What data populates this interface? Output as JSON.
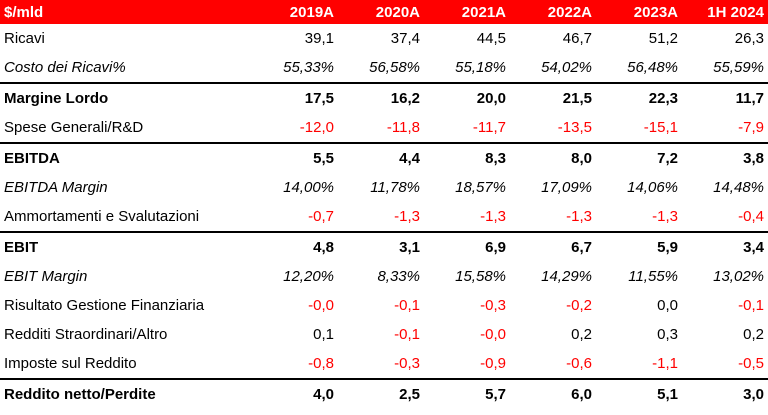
{
  "header": {
    "label": "$/mld",
    "columns": [
      "2019A",
      "2020A",
      "2021A",
      "2022A",
      "2023A",
      "1H 2024"
    ]
  },
  "rows": [
    {
      "label": "Ricavi",
      "values": [
        "39,1",
        "37,4",
        "44,5",
        "46,7",
        "51,2",
        "26,3"
      ]
    },
    {
      "label": "Costo dei Ricavi%",
      "values": [
        "55,33%",
        "56,58%",
        "55,18%",
        "54,02%",
        "56,48%",
        "55,59%"
      ]
    },
    {
      "label": "Margine Lordo",
      "values": [
        "17,5",
        "16,2",
        "20,0",
        "21,5",
        "22,3",
        "11,7"
      ]
    },
    {
      "label": "Spese Generali/R&D",
      "values": [
        "-12,0",
        "-11,8",
        "-11,7",
        "-13,5",
        "-15,1",
        "-7,9"
      ]
    },
    {
      "label": "EBITDA",
      "values": [
        "5,5",
        "4,4",
        "8,3",
        "8,0",
        "7,2",
        "3,8"
      ]
    },
    {
      "label": "EBITDA Margin",
      "values": [
        "14,00%",
        "11,78%",
        "18,57%",
        "17,09%",
        "14,06%",
        "14,48%"
      ]
    },
    {
      "label": "Ammortamenti e Svalutazioni",
      "values": [
        "-0,7",
        "-1,3",
        "-1,3",
        "-1,3",
        "-1,3",
        "-0,4"
      ]
    },
    {
      "label": "EBIT",
      "values": [
        "4,8",
        "3,1",
        "6,9",
        "6,7",
        "5,9",
        "3,4"
      ]
    },
    {
      "label": "EBIT Margin",
      "values": [
        "12,20%",
        "8,33%",
        "15,58%",
        "14,29%",
        "11,55%",
        "13,02%"
      ]
    },
    {
      "label": "Risultato Gestione Finanziaria",
      "values": [
        "-0,0",
        "-0,1",
        "-0,3",
        "-0,2",
        "0,0",
        "-0,1"
      ]
    },
    {
      "label": "Redditi Straordinari/Altro",
      "values": [
        "0,1",
        "-0,1",
        "-0,0",
        "0,2",
        "0,3",
        "0,2"
      ]
    },
    {
      "label": "Imposte sul Reddito",
      "values": [
        "-0,8",
        "-0,3",
        "-0,9",
        "-0,6",
        "-1,1",
        "-0,5"
      ]
    },
    {
      "label": "Reddito netto/Perdite",
      "values": [
        "4,0",
        "2,5",
        "5,7",
        "6,0",
        "5,1",
        "3,0"
      ]
    }
  ],
  "colors": {
    "header_bg": "#ff0000",
    "header_text": "#ffffff",
    "negative": "#ff0000"
  }
}
